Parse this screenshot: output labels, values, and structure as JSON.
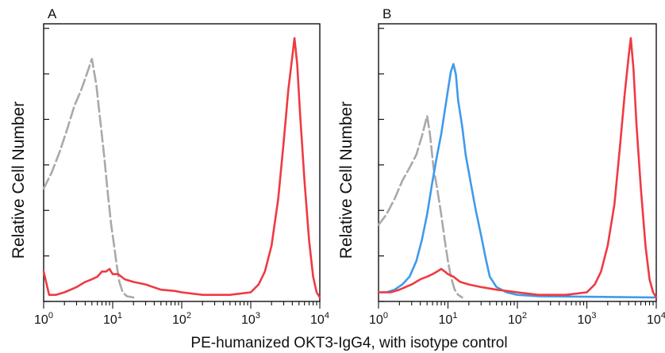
{
  "figure": {
    "xlabel": "PE-humanized OKT3-IgG4, with isotype control"
  },
  "colors": {
    "isotype": "#a9a9a9",
    "blue": "#3d9bea",
    "red": "#ef3a42",
    "axis": "#111111"
  },
  "chart_data": [
    {
      "type": "line",
      "panel_label": "A",
      "xscale": "log",
      "xlim": [
        1,
        10000
      ],
      "ylim": [
        0,
        1.0
      ],
      "x_ticks": [
        {
          "base": "10",
          "exp": "0"
        },
        {
          "base": "10",
          "exp": "1"
        },
        {
          "base": "10",
          "exp": "2"
        },
        {
          "base": "10",
          "exp": "3"
        },
        {
          "base": "10",
          "exp": "4"
        }
      ],
      "ylabel": "Relative Cell Number",
      "grid": false,
      "series": [
        {
          "color_key": "isotype",
          "style": "dashed",
          "points": [
            [
              1.0,
              0.42
            ],
            [
              1.3,
              0.48
            ],
            [
              1.7,
              0.56
            ],
            [
              2.2,
              0.65
            ],
            [
              2.8,
              0.74
            ],
            [
              3.5,
              0.8
            ],
            [
              4.2,
              0.86
            ],
            [
              5.0,
              0.92
            ],
            [
              5.8,
              0.82
            ],
            [
              6.5,
              0.7
            ],
            [
              7.5,
              0.55
            ],
            [
              8.5,
              0.4
            ],
            [
              9.5,
              0.28
            ],
            [
              10.5,
              0.2
            ],
            [
              11.5,
              0.12
            ],
            [
              12.5,
              0.06
            ],
            [
              14,
              0.02
            ],
            [
              16,
              0.005
            ],
            [
              20,
              0
            ]
          ]
        },
        {
          "color_key": "red",
          "style": "solid",
          "points": [
            [
              1.0,
              0.1
            ],
            [
              1.2,
              0.01
            ],
            [
              1.5,
              0.01
            ],
            [
              2.0,
              0.02
            ],
            [
              3.0,
              0.04
            ],
            [
              4.0,
              0.06
            ],
            [
              5.0,
              0.07
            ],
            [
              6.0,
              0.08
            ],
            [
              7.0,
              0.1
            ],
            [
              8.0,
              0.1
            ],
            [
              9.0,
              0.11
            ],
            [
              10,
              0.09
            ],
            [
              12,
              0.09
            ],
            [
              15,
              0.07
            ],
            [
              20,
              0.06
            ],
            [
              30,
              0.05
            ],
            [
              50,
              0.03
            ],
            [
              80,
              0.025
            ],
            [
              100,
              0.02
            ],
            [
              200,
              0.01
            ],
            [
              500,
              0.01
            ],
            [
              1000,
              0.02
            ],
            [
              1300,
              0.05
            ],
            [
              1600,
              0.1
            ],
            [
              2000,
              0.2
            ],
            [
              2500,
              0.38
            ],
            [
              3000,
              0.6
            ],
            [
              3500,
              0.8
            ],
            [
              4000,
              0.93
            ],
            [
              4300,
              1.0
            ],
            [
              4700,
              0.9
            ],
            [
              5200,
              0.7
            ],
            [
              6000,
              0.45
            ],
            [
              7000,
              0.22
            ],
            [
              8000,
              0.08
            ],
            [
              9000,
              0.02
            ],
            [
              10000,
              0
            ]
          ]
        }
      ]
    },
    {
      "type": "line",
      "panel_label": "B",
      "xscale": "log",
      "xlim": [
        1,
        10000
      ],
      "ylim": [
        0,
        1.0
      ],
      "x_ticks": [
        {
          "base": "10",
          "exp": "0"
        },
        {
          "base": "10",
          "exp": "1"
        },
        {
          "base": "10",
          "exp": "2"
        },
        {
          "base": "10",
          "exp": "3"
        },
        {
          "base": "10",
          "exp": "4"
        }
      ],
      "ylabel": "Relative Cell Number",
      "grid": false,
      "series": [
        {
          "color_key": "isotype",
          "style": "dashed",
          "points": [
            [
              1.0,
              0.28
            ],
            [
              1.3,
              0.32
            ],
            [
              1.7,
              0.38
            ],
            [
              2.2,
              0.45
            ],
            [
              2.8,
              0.5
            ],
            [
              3.5,
              0.55
            ],
            [
              4.2,
              0.62
            ],
            [
              5.0,
              0.7
            ],
            [
              5.5,
              0.63
            ],
            [
              6.2,
              0.5
            ],
            [
              7.0,
              0.42
            ],
            [
              8.0,
              0.32
            ],
            [
              9.0,
              0.22
            ],
            [
              10,
              0.14
            ],
            [
              11,
              0.08
            ],
            [
              12.5,
              0.03
            ],
            [
              14,
              0.01
            ],
            [
              16,
              0
            ]
          ]
        },
        {
          "color_key": "blue",
          "style": "solid",
          "points": [
            [
              1.0,
              0.02
            ],
            [
              1.3,
              0.02
            ],
            [
              1.7,
              0.03
            ],
            [
              2.2,
              0.05
            ],
            [
              2.8,
              0.08
            ],
            [
              3.5,
              0.14
            ],
            [
              4.2,
              0.22
            ],
            [
              5.0,
              0.32
            ],
            [
              6.0,
              0.45
            ],
            [
              7.0,
              0.55
            ],
            [
              8.0,
              0.63
            ],
            [
              9.0,
              0.72
            ],
            [
              10,
              0.8
            ],
            [
              11,
              0.87
            ],
            [
              12,
              0.9
            ],
            [
              13,
              0.86
            ],
            [
              14,
              0.76
            ],
            [
              16,
              0.66
            ],
            [
              18,
              0.55
            ],
            [
              21,
              0.45
            ],
            [
              25,
              0.34
            ],
            [
              30,
              0.24
            ],
            [
              35,
              0.15
            ],
            [
              40,
              0.08
            ],
            [
              50,
              0.04
            ],
            [
              70,
              0.02
            ],
            [
              100,
              0.01
            ],
            [
              200,
              0.005
            ],
            [
              10000,
              0
            ]
          ]
        },
        {
          "color_key": "red",
          "style": "solid",
          "points": [
            [
              1.0,
              0.02
            ],
            [
              1.5,
              0.02
            ],
            [
              2.0,
              0.03
            ],
            [
              3.0,
              0.05
            ],
            [
              4.0,
              0.07
            ],
            [
              5.0,
              0.08
            ],
            [
              6.0,
              0.09
            ],
            [
              7.0,
              0.1
            ],
            [
              8.0,
              0.11
            ],
            [
              9.0,
              0.1
            ],
            [
              10,
              0.09
            ],
            [
              12,
              0.08
            ],
            [
              15,
              0.06
            ],
            [
              20,
              0.05
            ],
            [
              30,
              0.04
            ],
            [
              50,
              0.03
            ],
            [
              100,
              0.02
            ],
            [
              200,
              0.01
            ],
            [
              500,
              0.01
            ],
            [
              1000,
              0.02
            ],
            [
              1300,
              0.05
            ],
            [
              1600,
              0.1
            ],
            [
              2000,
              0.2
            ],
            [
              2500,
              0.36
            ],
            [
              3000,
              0.58
            ],
            [
              3500,
              0.78
            ],
            [
              4000,
              0.93
            ],
            [
              4300,
              1.0
            ],
            [
              4700,
              0.88
            ],
            [
              5200,
              0.66
            ],
            [
              6000,
              0.42
            ],
            [
              7000,
              0.2
            ],
            [
              8000,
              0.07
            ],
            [
              9000,
              0.02
            ],
            [
              10000,
              0
            ]
          ]
        }
      ]
    }
  ]
}
